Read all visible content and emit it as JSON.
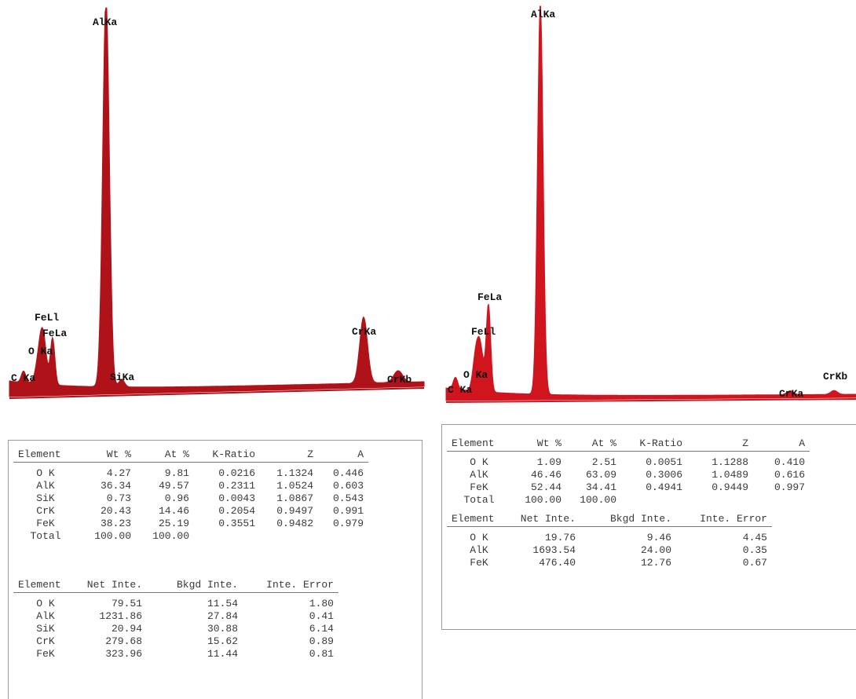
{
  "chart_data": [
    {
      "type": "area",
      "color": "#b0121a",
      "peaks": [
        {
          "label": "C Ka",
          "height": 0.03
        },
        {
          "label": "O Ka",
          "height": 0.07
        },
        {
          "label": "FeLl",
          "height": 0.09
        },
        {
          "label": "FeLa",
          "height": 0.12
        },
        {
          "label": "AlKa",
          "height": 1.0
        },
        {
          "label": "SiKa",
          "height": 0.02
        },
        {
          "label": "CrKa",
          "height": 0.17
        },
        {
          "label": "CrKb",
          "height": 0.03
        }
      ],
      "tables": {
        "composition": {
          "headers": [
            "Element",
            "Wt %",
            "At %",
            "K-Ratio",
            "Z",
            "A"
          ],
          "rows": [
            [
              "O K",
              "4.27",
              "9.81",
              "0.0216",
              "1.1324",
              "0.446"
            ],
            [
              "AlK",
              "36.34",
              "49.57",
              "0.2311",
              "1.0524",
              "0.603"
            ],
            [
              "SiK",
              "0.73",
              "0.96",
              "0.0043",
              "1.0867",
              "0.543"
            ],
            [
              "CrK",
              "20.43",
              "14.46",
              "0.2054",
              "0.9497",
              "0.991"
            ],
            [
              "FeK",
              "38.23",
              "25.19",
              "0.3551",
              "0.9482",
              "0.979"
            ],
            [
              "Total",
              "100.00",
              "100.00",
              "",
              "",
              ""
            ]
          ]
        },
        "intensity": {
          "headers": [
            "Element",
            "Net Inte.",
            "Bkgd Inte.",
            "Inte. Error"
          ],
          "rows": [
            [
              "O K",
              "79.51",
              "11.54",
              "1.80"
            ],
            [
              "AlK",
              "1231.86",
              "27.84",
              "0.41"
            ],
            [
              "SiK",
              "20.94",
              "30.88",
              "6.14"
            ],
            [
              "CrK",
              "279.68",
              "15.62",
              "0.89"
            ],
            [
              "FeK",
              "323.96",
              "11.44",
              "0.81"
            ]
          ]
        }
      }
    },
    {
      "type": "area",
      "color": "#d0151f",
      "peaks": [
        {
          "label": "C Ka",
          "height": 0.03
        },
        {
          "label": "O Ka",
          "height": 0.06
        },
        {
          "label": "FeLl",
          "height": 0.12
        },
        {
          "label": "FeLa",
          "height": 0.22
        },
        {
          "label": "AlKa",
          "height": 1.0
        },
        {
          "label": "CrKa",
          "height": 0.01
        },
        {
          "label": "CrKb",
          "height": 0.01
        }
      ],
      "tables": {
        "composition": {
          "headers": [
            "Element",
            "Wt %",
            "At %",
            "K-Ratio",
            "Z",
            "A"
          ],
          "rows": [
            [
              "O K",
              "1.09",
              "2.51",
              "0.0051",
              "1.1288",
              "0.410"
            ],
            [
              "AlK",
              "46.46",
              "63.09",
              "0.3006",
              "1.0489",
              "0.616"
            ],
            [
              "FeK",
              "52.44",
              "34.41",
              "0.4941",
              "0.9449",
              "0.997"
            ],
            [
              "Total",
              "100.00",
              "100.00",
              "",
              "",
              ""
            ]
          ]
        },
        "intensity": {
          "headers": [
            "Element",
            "Net Inte.",
            "Bkgd Inte.",
            "Inte. Error"
          ],
          "rows": [
            [
              "O K",
              "19.76",
              "9.46",
              "4.45"
            ],
            [
              "AlK",
              "1693.54",
              "24.00",
              "0.35"
            ],
            [
              "FeK",
              "476.40",
              "12.76",
              "0.67"
            ]
          ]
        }
      }
    }
  ]
}
